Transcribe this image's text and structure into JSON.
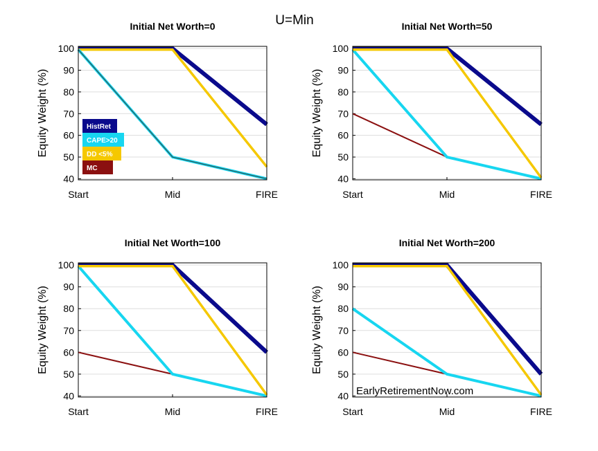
{
  "suptitle": "U=Min",
  "watermark": "EarlyRetirementNow.com",
  "colors": {
    "HistRet": "#0a0a8c",
    "CAPE>20": "#17d6f0",
    "DD <5%": "#f5c800",
    "MC": "#8b1010"
  },
  "chart_data": [
    {
      "type": "line",
      "title": "Initial Net Worth=0",
      "ylabel": "Equity Weight (%)",
      "categories": [
        "Start",
        "Mid",
        "FIRE"
      ],
      "yticks": [
        40,
        50,
        60,
        70,
        80,
        90,
        100
      ],
      "ylim": [
        39.5,
        101
      ],
      "grid": true,
      "legend": {
        "position": "left",
        "entries": [
          "HistRet",
          "CAPE>20",
          "DD <5%",
          "MC"
        ]
      },
      "series": [
        {
          "name": "HistRet",
          "values": [
            100,
            100,
            65
          ]
        },
        {
          "name": "DD <5%",
          "values": [
            99.5,
            99.5,
            45.5
          ]
        },
        {
          "name": "MC",
          "values": [
            99.5,
            50.3,
            40.3
          ]
        },
        {
          "name": "CAPE>20",
          "values": [
            99.5,
            50,
            40
          ]
        }
      ]
    },
    {
      "type": "line",
      "title": "Initial Net Worth=50",
      "ylabel": "Equity Weight (%)",
      "categories": [
        "Start",
        "Mid",
        "FIRE"
      ],
      "yticks": [
        40,
        50,
        60,
        70,
        80,
        90,
        100
      ],
      "ylim": [
        39.5,
        101
      ],
      "grid": true,
      "series": [
        {
          "name": "MC",
          "values": [
            70,
            50,
            40
          ]
        },
        {
          "name": "CAPE>20",
          "values": [
            99.5,
            50,
            40
          ]
        },
        {
          "name": "HistRet",
          "values": [
            100,
            100,
            65
          ]
        },
        {
          "name": "DD <5%",
          "values": [
            99.5,
            99.5,
            40.5
          ]
        }
      ]
    },
    {
      "type": "line",
      "title": "Initial Net Worth=100",
      "ylabel": "Equity Weight (%)",
      "categories": [
        "Start",
        "Mid",
        "FIRE"
      ],
      "yticks": [
        40,
        50,
        60,
        70,
        80,
        90,
        100
      ],
      "ylim": [
        39.5,
        101
      ],
      "grid": true,
      "series": [
        {
          "name": "MC",
          "values": [
            60,
            50,
            40
          ]
        },
        {
          "name": "CAPE>20",
          "values": [
            99.5,
            50,
            40
          ]
        },
        {
          "name": "HistRet",
          "values": [
            100,
            100,
            60
          ]
        },
        {
          "name": "DD <5%",
          "values": [
            99.5,
            99.5,
            40.5
          ]
        }
      ]
    },
    {
      "type": "line",
      "title": "Initial Net Worth=200",
      "ylabel": "Equity Weight (%)",
      "categories": [
        "Start",
        "Mid",
        "FIRE"
      ],
      "yticks": [
        40,
        50,
        60,
        70,
        80,
        90,
        100
      ],
      "ylim": [
        39.5,
        101
      ],
      "grid": true,
      "series": [
        {
          "name": "MC",
          "values": [
            60,
            50,
            40
          ]
        },
        {
          "name": "CAPE>20",
          "values": [
            80,
            50,
            40
          ]
        },
        {
          "name": "HistRet",
          "values": [
            100,
            100,
            50
          ]
        },
        {
          "name": "DD <5%",
          "values": [
            99.5,
            99.5,
            40.5
          ]
        }
      ]
    }
  ]
}
